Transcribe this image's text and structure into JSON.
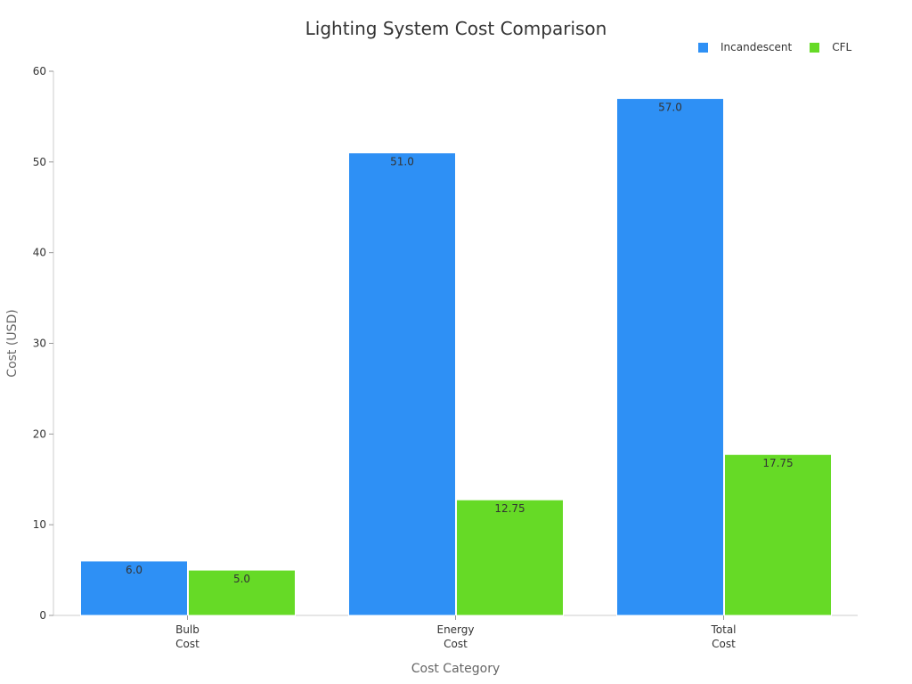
{
  "chart_data": {
    "type": "bar",
    "title": "Lighting System Cost Comparison",
    "xlabel": "Cost Category",
    "ylabel": "Cost (USD)",
    "categories": [
      [
        "Bulb",
        "Cost"
      ],
      [
        "Energy",
        "Cost"
      ],
      [
        "Total",
        "Cost"
      ]
    ],
    "series": [
      {
        "name": "Incandescent",
        "values": [
          6.0,
          51.0,
          57.0
        ],
        "labels": [
          "6.0",
          "51.0",
          "57.0"
        ],
        "color": "#2E90F5"
      },
      {
        "name": "CFL",
        "values": [
          5.0,
          12.75,
          17.75
        ],
        "labels": [
          "5.0",
          "12.75",
          "17.75"
        ],
        "color": "#66DA26"
      }
    ],
    "ylim": [
      0,
      60
    ],
    "yticks": [
      0,
      10,
      20,
      30,
      40,
      50,
      60
    ],
    "grid": false,
    "legend": "top-right"
  }
}
